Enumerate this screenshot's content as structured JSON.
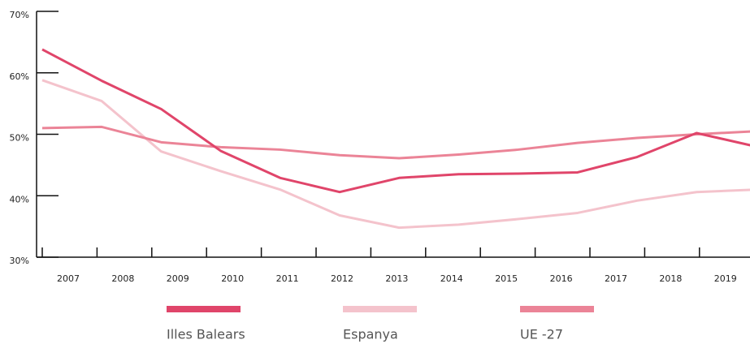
{
  "chart_data": {
    "type": "line",
    "categories": [
      "2007",
      "2008",
      "2009",
      "2010",
      "2011",
      "2012",
      "2013",
      "2014",
      "2015",
      "2016",
      "2017",
      "2018",
      "2019"
    ],
    "series": [
      {
        "name": "Illes Balears",
        "color": "#e0456a",
        "values": [
          63.8,
          58.7,
          54.1,
          47.3,
          42.9,
          40.6,
          42.9,
          43.5,
          43.6,
          43.8,
          46.3,
          50.2,
          48.0
        ]
      },
      {
        "name": "Espanya",
        "color": "#f4c3cc",
        "values": [
          58.8,
          55.4,
          47.2,
          44.0,
          41.0,
          36.8,
          34.8,
          35.3,
          36.2,
          37.2,
          39.2,
          40.6,
          41.0
        ]
      },
      {
        "name": "UE -27",
        "color": "#eb8497",
        "values": [
          51.0,
          51.2,
          48.7,
          47.9,
          47.5,
          46.6,
          46.1,
          46.7,
          47.5,
          48.6,
          49.4,
          50.0,
          50.5
        ]
      }
    ],
    "ylim": [
      30,
      70
    ],
    "yticks": [
      {
        "value": 30,
        "label": "30%"
      },
      {
        "value": 40,
        "label": "40%"
      },
      {
        "value": 50,
        "label": "50%"
      },
      {
        "value": 60,
        "label": "60%"
      },
      {
        "value": 70,
        "label": "70%"
      }
    ],
    "grid": false
  }
}
